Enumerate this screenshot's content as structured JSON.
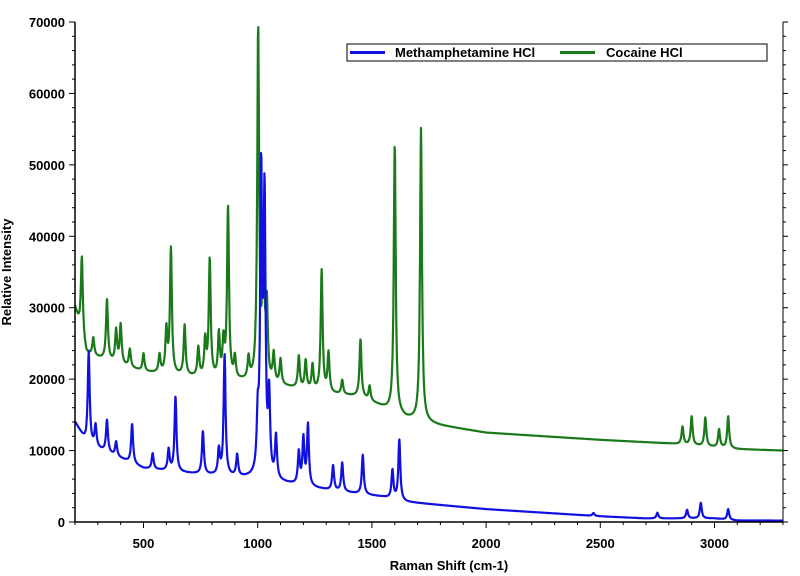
{
  "chart_data": {
    "type": "line",
    "title": "",
    "xlabel": "Raman Shift (cm-1)",
    "ylabel": "Relative Intensity",
    "xlim": [
      200,
      3300
    ],
    "ylim": [
      0,
      70000
    ],
    "xticks": [
      500,
      1000,
      1500,
      2000,
      2500,
      3000
    ],
    "xtick_labels": [
      "500",
      "1000",
      "1500",
      "2000",
      "2500",
      "3000"
    ],
    "yticks": [
      0,
      10000,
      20000,
      30000,
      40000,
      50000,
      60000,
      70000
    ],
    "ytick_labels": [
      "0",
      "10000",
      "20000",
      "30000",
      "40000",
      "50000",
      "60000",
      "70000"
    ],
    "grid": false,
    "legend_position": "top-right",
    "series": [
      {
        "name": "Cocaine HCl",
        "color": "#1a7a1a",
        "baseline": [
          [
            200,
            30000
          ],
          [
            250,
            23500
          ],
          [
            500,
            21000
          ],
          [
            800,
            20000
          ],
          [
            1000,
            19500
          ],
          [
            1300,
            18000
          ],
          [
            1450,
            17500
          ],
          [
            1550,
            16000
          ],
          [
            1650,
            14500
          ],
          [
            1800,
            13500
          ],
          [
            2000,
            12500
          ],
          [
            2500,
            11500
          ],
          [
            2800,
            11000
          ],
          [
            3100,
            10200
          ],
          [
            3300,
            10000
          ]
        ],
        "peaks": [
          [
            230,
            11000
          ],
          [
            280,
            2500
          ],
          [
            340,
            8500
          ],
          [
            380,
            4500
          ],
          [
            400,
            5500
          ],
          [
            440,
            2500
          ],
          [
            500,
            2500
          ],
          [
            570,
            2500
          ],
          [
            600,
            6000
          ],
          [
            620,
            17500
          ],
          [
            680,
            7000
          ],
          [
            740,
            4000
          ],
          [
            770,
            5000
          ],
          [
            790,
            16500
          ],
          [
            830,
            6000
          ],
          [
            850,
            5000
          ],
          [
            870,
            24000
          ],
          [
            900,
            3000
          ],
          [
            960,
            3000
          ],
          [
            1002,
            49000
          ],
          [
            1025,
            20000
          ],
          [
            1040,
            10000
          ],
          [
            1070,
            4000
          ],
          [
            1100,
            3500
          ],
          [
            1180,
            4500
          ],
          [
            1210,
            4000
          ],
          [
            1240,
            3500
          ],
          [
            1280,
            17000
          ],
          [
            1310,
            5500
          ],
          [
            1370,
            2000
          ],
          [
            1450,
            8000
          ],
          [
            1490,
            2000
          ],
          [
            1600,
            37500
          ],
          [
            1715,
            41000
          ],
          [
            2860,
            2500
          ],
          [
            2900,
            4000
          ],
          [
            2960,
            4000
          ],
          [
            3020,
            2500
          ],
          [
            3060,
            4500
          ]
        ]
      },
      {
        "name": "Methamphetamine HCl",
        "color": "#1010e0",
        "baseline": [
          [
            200,
            14000
          ],
          [
            250,
            11000
          ],
          [
            500,
            7500
          ],
          [
            700,
            6800
          ],
          [
            1000,
            6000
          ],
          [
            1300,
            4500
          ],
          [
            1550,
            3500
          ],
          [
            1650,
            2800
          ],
          [
            2000,
            1800
          ],
          [
            2500,
            800
          ],
          [
            2700,
            500
          ],
          [
            3000,
            500
          ],
          [
            3100,
            200
          ],
          [
            3300,
            200
          ]
        ],
        "peaks": [
          [
            260,
            13000
          ],
          [
            290,
            3000
          ],
          [
            340,
            4500
          ],
          [
            380,
            2000
          ],
          [
            450,
            5500
          ],
          [
            540,
            2200
          ],
          [
            610,
            3000
          ],
          [
            640,
            10500
          ],
          [
            760,
            6000
          ],
          [
            830,
            3500
          ],
          [
            855,
            17000
          ],
          [
            910,
            3000
          ],
          [
            1000,
            7000
          ],
          [
            1015,
            41500
          ],
          [
            1030,
            38000
          ],
          [
            1050,
            11000
          ],
          [
            1080,
            6000
          ],
          [
            1180,
            4500
          ],
          [
            1200,
            6500
          ],
          [
            1220,
            8500
          ],
          [
            1330,
            3500
          ],
          [
            1370,
            4000
          ],
          [
            1460,
            5500
          ],
          [
            1590,
            4000
          ],
          [
            1620,
            8500
          ],
          [
            2470,
            400
          ],
          [
            2750,
            800
          ],
          [
            2880,
            1200
          ],
          [
            2940,
            2200
          ],
          [
            3060,
            1500
          ]
        ]
      }
    ]
  }
}
